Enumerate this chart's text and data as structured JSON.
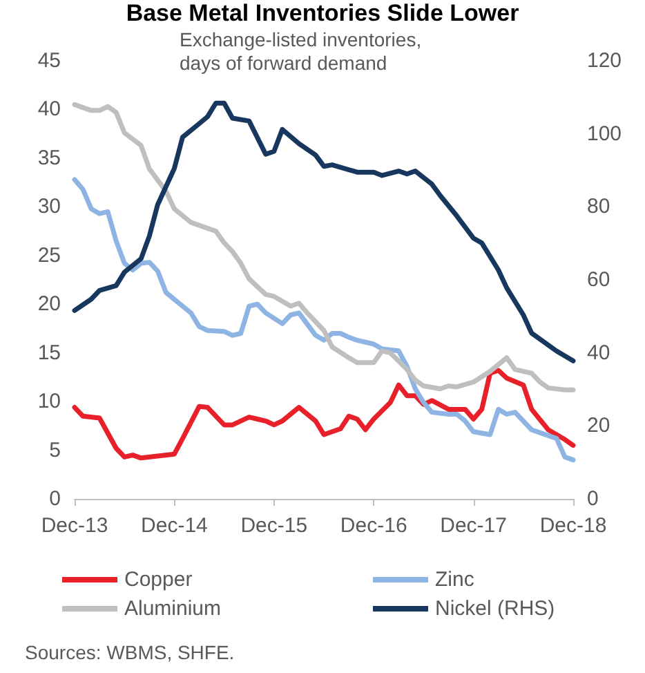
{
  "chart_data": {
    "type": "line",
    "title": "Base Metal Inventories Slide Lower",
    "subtitle": "Exchange-listed inventories,\ndays of forward demand",
    "xlim": [
      "2013-12",
      "2018-12"
    ],
    "xticks": [
      {
        "value": "2013-12",
        "label": "Dec-13"
      },
      {
        "value": "2014-12",
        "label": "Dec-14"
      },
      {
        "value": "2015-12",
        "label": "Dec-15"
      },
      {
        "value": "2016-12",
        "label": "Dec-16"
      },
      {
        "value": "2017-12",
        "label": "Dec-17"
      },
      {
        "value": "2018-12",
        "label": "Dec-18"
      }
    ],
    "ylim": [
      0,
      45
    ],
    "yticks": [
      0,
      5,
      10,
      15,
      20,
      25,
      30,
      35,
      40,
      45
    ],
    "y2lim": [
      0,
      120
    ],
    "y2ticks": [
      0,
      20,
      40,
      60,
      80,
      100,
      120
    ],
    "grid": false,
    "legend": "bottom",
    "marker": "none",
    "line_style": "solid",
    "annotations": [
      "Sources: WBMS, SHFE."
    ],
    "series": [
      {
        "name": "Copper",
        "color": "#e8202a",
        "x": [
          "2013-12",
          "2014-01",
          "2014-03",
          "2014-05",
          "2014-06",
          "2014-07",
          "2014-08",
          "2014-10",
          "2014-12",
          "2015-01",
          "2015-03",
          "2015-04",
          "2015-06",
          "2015-07",
          "2015-09",
          "2015-10",
          "2015-11",
          "2015-12",
          "2016-01",
          "2016-03",
          "2016-05",
          "2016-06",
          "2016-08",
          "2016-09",
          "2016-10",
          "2016-11",
          "2016-12",
          "2017-02",
          "2017-03",
          "2017-04",
          "2017-05",
          "2017-06",
          "2017-07",
          "2017-09",
          "2017-11",
          "2017-12",
          "2018-01",
          "2018-02",
          "2018-03",
          "2018-04",
          "2018-06",
          "2018-07",
          "2018-09",
          "2018-10",
          "2018-11",
          "2018-12"
        ],
        "values": [
          9.4,
          8.5,
          8.3,
          5.2,
          4.3,
          4.5,
          4.2,
          4.4,
          4.6,
          6.2,
          9.5,
          9.4,
          7.6,
          7.6,
          8.4,
          8.2,
          8.0,
          7.6,
          8.0,
          9.4,
          8.0,
          6.6,
          7.2,
          8.5,
          8.2,
          7.1,
          8.2,
          9.9,
          11.7,
          10.6,
          10.6,
          9.7,
          10.1,
          9.2,
          9.2,
          8.2,
          9.2,
          12.9,
          13.2,
          12.4,
          11.7,
          9.2,
          7.1,
          6.6,
          6.1,
          5.5
        ]
      },
      {
        "name": "Zinc",
        "color": "#8db4e2",
        "x": [
          "2013-12",
          "2014-01",
          "2014-02",
          "2014-03",
          "2014-04",
          "2014-05",
          "2014-06",
          "2014-07",
          "2014-08",
          "2014-09",
          "2014-10",
          "2014-11",
          "2014-12",
          "2015-02",
          "2015-03",
          "2015-04",
          "2015-06",
          "2015-07",
          "2015-08",
          "2015-09",
          "2015-10",
          "2015-11",
          "2016-01",
          "2016-02",
          "2016-03",
          "2016-05",
          "2016-06",
          "2016-07",
          "2016-08",
          "2016-09",
          "2016-10",
          "2016-12",
          "2017-01",
          "2017-03",
          "2017-04",
          "2017-05",
          "2017-06",
          "2017-07",
          "2017-09",
          "2017-10",
          "2017-11",
          "2017-12",
          "2018-02",
          "2018-03",
          "2018-04",
          "2018-05",
          "2018-06",
          "2018-07",
          "2018-10",
          "2018-11",
          "2018-12"
        ],
        "values": [
          32.8,
          31.8,
          29.8,
          29.3,
          29.5,
          26.5,
          24.2,
          23.5,
          24.2,
          24.3,
          23.4,
          21.2,
          20.5,
          19.1,
          17.7,
          17.3,
          17.2,
          16.8,
          17.0,
          19.8,
          20.0,
          19.1,
          18.0,
          18.9,
          19.1,
          16.8,
          16.3,
          17.0,
          17.0,
          16.6,
          16.3,
          15.9,
          15.4,
          15.2,
          13.6,
          11.3,
          9.9,
          8.9,
          8.7,
          8.7,
          8.0,
          6.9,
          6.6,
          9.2,
          8.7,
          8.9,
          8.0,
          7.1,
          6.2,
          4.3,
          4.0
        ]
      },
      {
        "name": "Aluminium",
        "color": "#bfbfbf",
        "x": [
          "2013-12",
          "2014-01",
          "2014-02",
          "2014-03",
          "2014-04",
          "2014-05",
          "2014-06",
          "2014-08",
          "2014-09",
          "2014-11",
          "2014-12",
          "2015-02",
          "2015-04",
          "2015-05",
          "2015-06",
          "2015-07",
          "2015-08",
          "2015-09",
          "2015-11",
          "2015-12",
          "2016-02",
          "2016-03",
          "2016-04",
          "2016-06",
          "2016-07",
          "2016-09",
          "2016-10",
          "2016-12",
          "2017-01",
          "2017-02",
          "2017-04",
          "2017-05",
          "2017-06",
          "2017-08",
          "2017-09",
          "2017-10",
          "2017-12",
          "2018-02",
          "2018-04",
          "2018-05",
          "2018-07",
          "2018-08",
          "2018-09",
          "2018-11",
          "2018-12"
        ],
        "values": [
          40.5,
          40.2,
          39.9,
          39.9,
          40.3,
          39.7,
          37.6,
          36.3,
          33.9,
          31.6,
          29.8,
          28.4,
          27.8,
          27.5,
          26.3,
          25.4,
          24.2,
          22.6,
          21.0,
          20.8,
          19.8,
          20.1,
          19.1,
          17.3,
          15.6,
          14.5,
          14.0,
          14.0,
          15.2,
          15.0,
          13.3,
          12.2,
          11.6,
          11.3,
          11.6,
          11.5,
          12.0,
          13.1,
          14.5,
          13.3,
          12.9,
          12.0,
          11.4,
          11.2,
          11.2
        ]
      },
      {
        "name": "Nickel (RHS)",
        "color": "#17375e",
        "axis": "y2",
        "x": [
          "2013-12",
          "2014-02",
          "2014-03",
          "2014-05",
          "2014-06",
          "2014-08",
          "2014-09",
          "2014-10",
          "2014-12",
          "2015-01",
          "2015-03",
          "2015-04",
          "2015-05",
          "2015-06",
          "2015-07",
          "2015-09",
          "2015-11",
          "2015-12",
          "2016-01",
          "2016-03",
          "2016-05",
          "2016-06",
          "2016-07",
          "2016-10",
          "2016-12",
          "2017-01",
          "2017-03",
          "2017-04",
          "2017-05",
          "2017-07",
          "2017-08",
          "2017-10",
          "2017-12",
          "2018-01",
          "2018-03",
          "2018-04",
          "2018-06",
          "2018-07",
          "2018-10",
          "2018-12"
        ],
        "values": [
          51.6,
          54.7,
          57.1,
          58.4,
          62.1,
          65.8,
          72.0,
          80.6,
          90.5,
          99.1,
          102.8,
          104.7,
          108.4,
          108.4,
          104.3,
          103.5,
          94.4,
          95.2,
          101.2,
          97.3,
          94.2,
          91.1,
          91.5,
          89.5,
          89.5,
          88.6,
          89.8,
          89.0,
          89.8,
          86.2,
          83.1,
          77.5,
          71.4,
          70.1,
          62.7,
          57.8,
          50.4,
          45.4,
          40.5,
          37.8
        ]
      }
    ]
  }
}
